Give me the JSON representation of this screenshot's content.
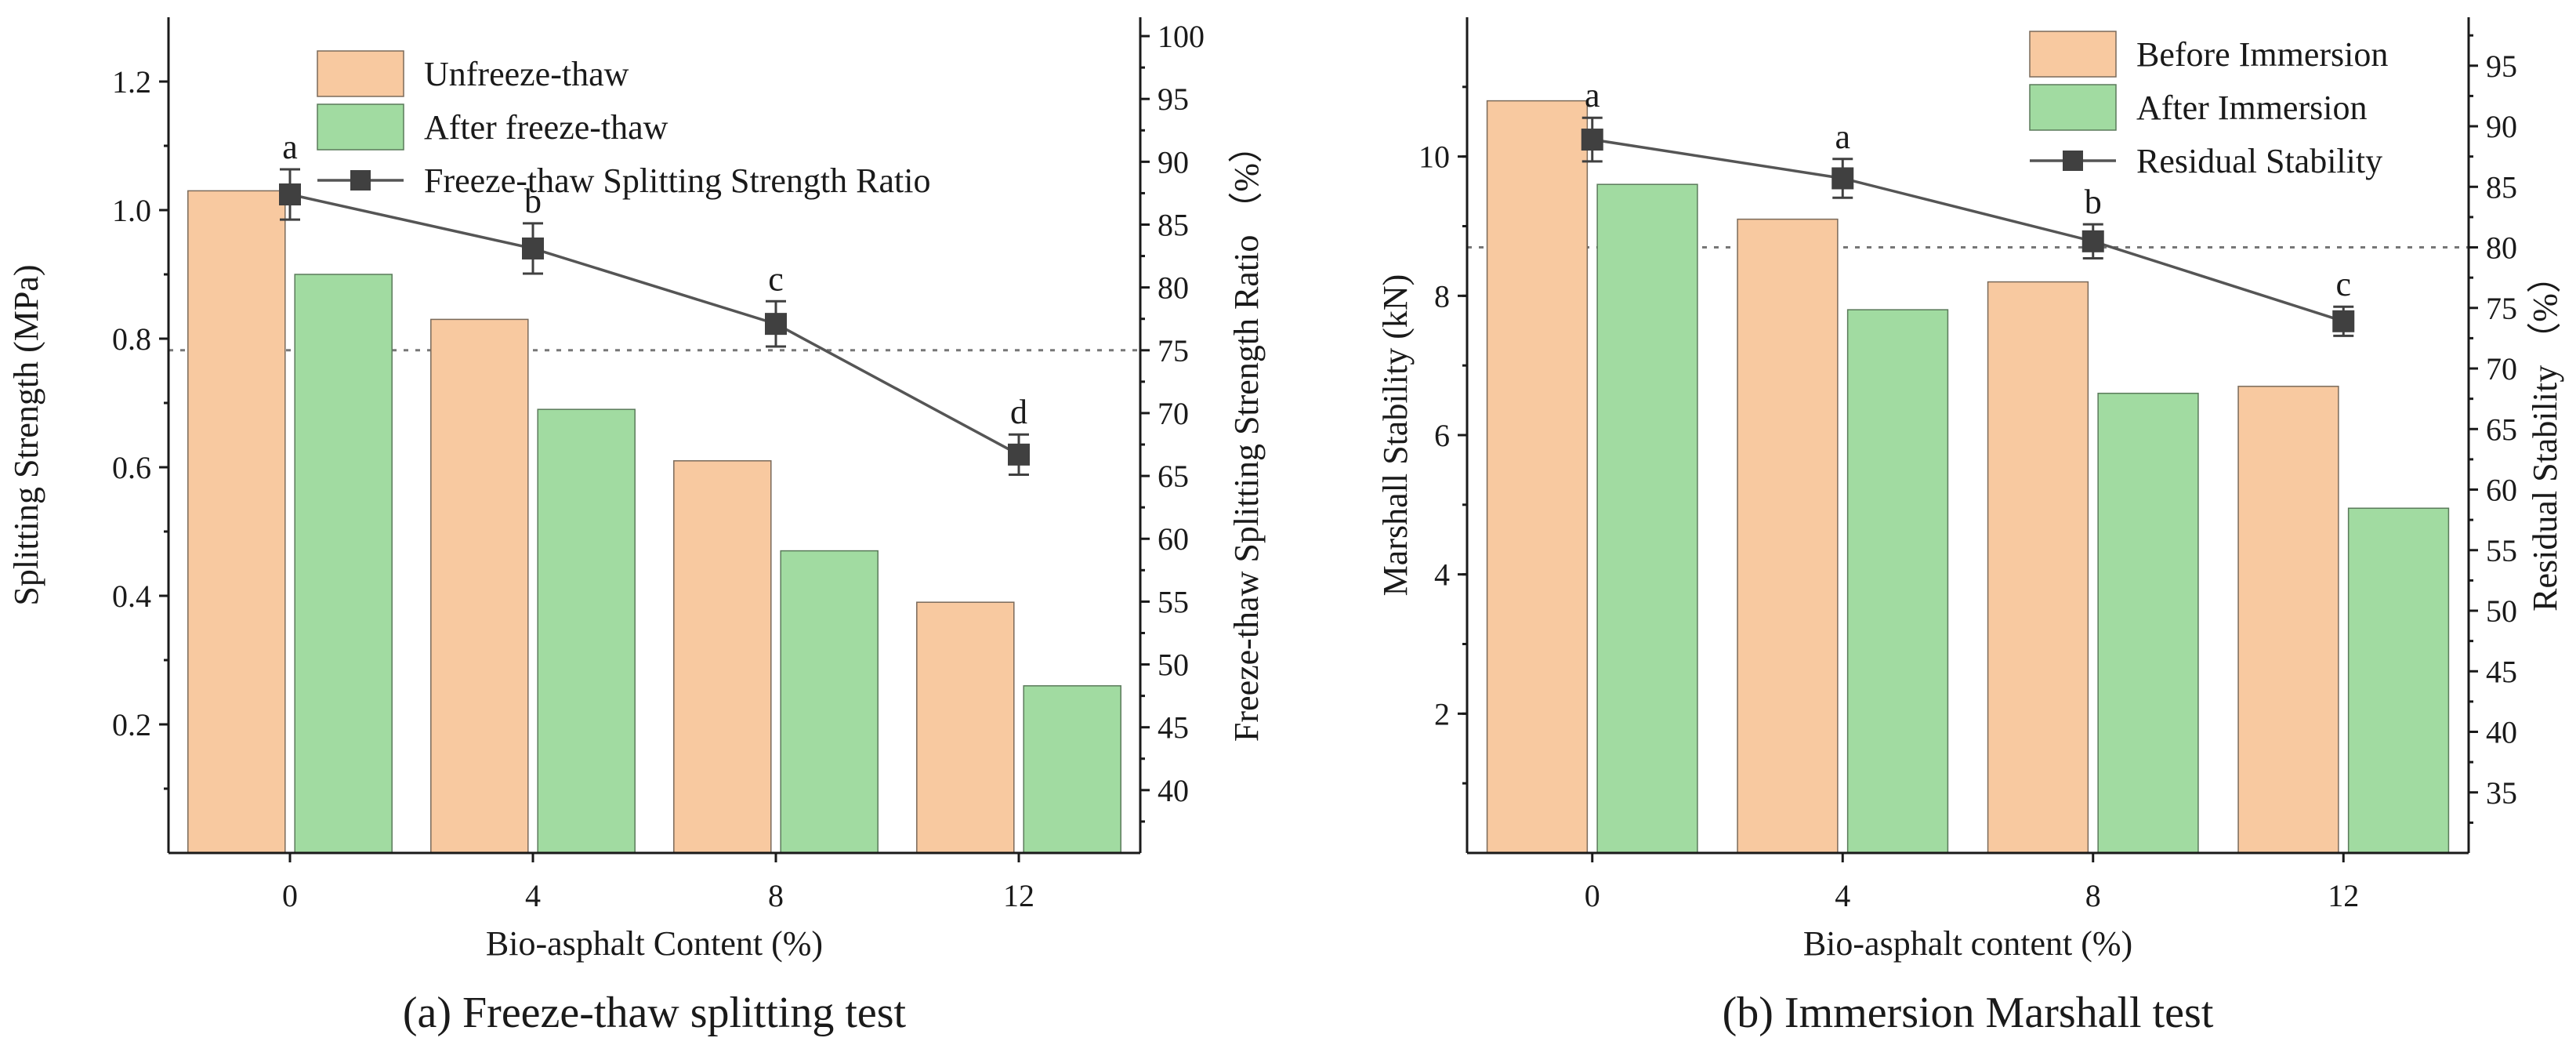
{
  "colors": {
    "bar_primary": "#f8c9a0",
    "bar_primary_edge": "#7a6a5a",
    "bar_secondary": "#a1dba1",
    "bar_secondary_edge": "#5a7a5a",
    "line": "#555555",
    "marker": "#404040",
    "threshold": "#777777"
  },
  "chart_data": [
    {
      "type": "bar",
      "panel": "a",
      "caption": "(a) Freeze-thaw splitting test",
      "xlabel": "Bio-asphalt Content (%)",
      "ylabel": "Splitting Strength (MPa)",
      "y2label": "Freeze-thaw Splitting Strength Ratio （%）",
      "categories": [
        "0",
        "4",
        "8",
        "12"
      ],
      "ylim": [
        0,
        1.3
      ],
      "yticks": [
        0.2,
        0.4,
        0.6,
        0.8,
        1.0,
        1.2
      ],
      "ytick_labels": [
        "0.2",
        "0.4",
        "0.6",
        "0.8",
        "1.0",
        "1.2"
      ],
      "y2lim": [
        35.0,
        101.5
      ],
      "y2ticks": [
        40,
        45,
        50,
        55,
        60,
        65,
        70,
        75,
        80,
        85,
        90,
        95,
        100
      ],
      "series": [
        {
          "name": "Unfreeze-thaw",
          "kind": "bar",
          "values": [
            1.03,
            0.83,
            0.61,
            0.39
          ]
        },
        {
          "name": "After freeze-thaw",
          "kind": "bar",
          "values": [
            0.9,
            0.69,
            0.47,
            0.26
          ]
        }
      ],
      "line_series": {
        "name": "Freeze-thaw Splitting Strength Ratio",
        "values": [
          87.4,
          83.1,
          77.1,
          66.7
        ],
        "errors": [
          2.0,
          2.0,
          1.8,
          1.6
        ],
        "labels": [
          "a",
          "b",
          "c",
          "d"
        ]
      },
      "threshold": 75,
      "legend_location": "top-center"
    },
    {
      "type": "bar",
      "panel": "b",
      "caption": "(b) Immersion Marshall test",
      "xlabel": "Bio-asphalt content (%)",
      "ylabel": "Marshall Stability (kN)",
      "y2label": "Residual Stability （%）",
      "categories": [
        "0",
        "4",
        "8",
        "12"
      ],
      "ylim": [
        0,
        12
      ],
      "yticks": [
        2,
        4,
        6,
        8,
        10
      ],
      "ytick_labels": [
        "2",
        "4",
        "6",
        "8",
        "10"
      ],
      "y2lim": [
        30,
        99
      ],
      "y2ticks": [
        35,
        40,
        45,
        50,
        55,
        60,
        65,
        70,
        75,
        80,
        85,
        90,
        95
      ],
      "series": [
        {
          "name": "Before Immersion",
          "kind": "bar",
          "values": [
            10.8,
            9.1,
            8.2,
            6.7
          ]
        },
        {
          "name": "After Immersion",
          "kind": "bar",
          "values": [
            9.6,
            7.8,
            6.6,
            4.95
          ]
        }
      ],
      "line_series": {
        "name": "Residual Stability",
        "values": [
          88.9,
          85.7,
          80.5,
          73.9
        ],
        "errors": [
          1.8,
          1.6,
          1.4,
          1.2
        ],
        "labels": [
          "a",
          "a",
          "b",
          "c"
        ]
      },
      "threshold": 80,
      "legend_location": "top-right"
    }
  ]
}
